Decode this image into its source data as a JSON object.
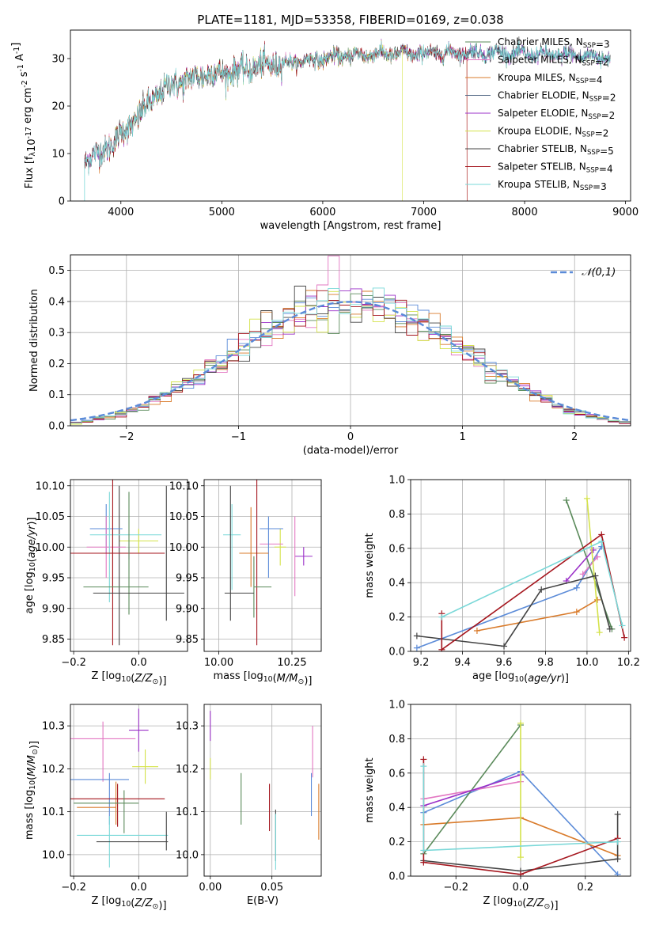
{
  "chart_data": [
    {
      "id": "spectrum",
      "type": "line",
      "title": "PLATE=1181, MJD=53358, FIBERID=0169, z=0.038",
      "xlabel": "wavelength [Angstrom, rest frame]",
      "ylabel": "Flux [f$_\\lambda$10$^{-17}$ erg cm$^{-2}$ s$^{-1}$ A$^{-1}$]",
      "xlim": [
        3500,
        9050
      ],
      "ylim": [
        0,
        36
      ],
      "xticks": [
        4000,
        5000,
        6000,
        7000,
        8000,
        9000
      ],
      "yticks": [
        0,
        10,
        20,
        30
      ],
      "grid": false,
      "legend_position": "right",
      "continuum": {
        "x": [
          3640,
          3700,
          3800,
          3900,
          4000,
          4100,
          4200,
          4300,
          4400,
          4500,
          4600,
          4800,
          5000,
          5200,
          5400,
          5600,
          5800,
          6000,
          6200,
          6500,
          6800,
          7000,
          7200,
          7500,
          7800,
          8000,
          8300,
          8600,
          8850
        ],
        "y": [
          8.5,
          9.5,
          10,
          12,
          14,
          16,
          18.5,
          21,
          23,
          24.5,
          25,
          26.5,
          27,
          27.5,
          28.5,
          29,
          29.5,
          30,
          30.5,
          31,
          31,
          31,
          31.2,
          31.2,
          31.2,
          31,
          30.8,
          30.5,
          30.2
        ]
      },
      "series": [
        {
          "name": "Chabrier MILES, N$_{SSP}$=3",
          "color": "#5a8a5a"
        },
        {
          "name": "Salpeter MILES, N$_{SSP}$=2",
          "color": "#e377c2"
        },
        {
          "name": "Kroupa MILES, N$_{SSP}$=4",
          "color": "#d97b2b"
        },
        {
          "name": "Chabrier ELODIE, N$_{SSP}$=2",
          "color": "#5a6e8a"
        },
        {
          "name": "Salpeter ELODIE, N$_{SSP}$=2",
          "color": "#9b30c8"
        },
        {
          "name": "Kroupa ELODIE, N$_{SSP}$=2",
          "color": "#d4e24a"
        },
        {
          "name": "Chabrier STELIB, N$_{SSP}$=5",
          "color": "#444444"
        },
        {
          "name": "Salpeter STELIB, N$_{SSP}$=4",
          "color": "#a5161e"
        },
        {
          "name": "Kroupa STELIB, N$_{SSP}$=3",
          "color": "#7ad8d8"
        }
      ],
      "series_ranges": [
        [
          3640,
          8850
        ],
        [
          3640,
          8850
        ],
        [
          3640,
          7430
        ],
        [
          3640,
          8850
        ],
        [
          3640,
          8850
        ],
        [
          3900,
          6790
        ],
        [
          3640,
          8850
        ],
        [
          3640,
          7430
        ],
        [
          3640,
          8850
        ]
      ]
    },
    {
      "id": "residuals",
      "type": "line",
      "title": "",
      "xlabel": "(data-model)/error",
      "ylabel": "Normed distribution",
      "xlim": [
        -2.5,
        2.5
      ],
      "ylim": [
        0,
        0.55
      ],
      "xticks": [
        -2,
        -1,
        0,
        1,
        2
      ],
      "yticks": [
        0,
        0.1,
        0.2,
        0.3,
        0.4,
        0.5
      ],
      "grid": true,
      "legend_position": "top-right",
      "gaussian": {
        "name": "$\\mathcal{N}(0,1)$",
        "color": "#5b8bd8"
      },
      "bin_width": 0.1,
      "histogram_colors": [
        "#5b8bd8",
        "#e377c2",
        "#d97b2b",
        "#5a8a5a",
        "#9b30c8",
        "#d4e24a",
        "#444444",
        "#a5161e",
        "#7ad8d8"
      ]
    },
    {
      "id": "age_vs_Z",
      "type": "scatter",
      "xlabel": "Z [log$_{10}$($Z/Z_\\odot$)]",
      "ylabel": "age  [log$_{10}$($age/yr$)]",
      "xlim": [
        -0.21,
        0.15
      ],
      "ylim": [
        9.83,
        10.11
      ],
      "xticks": [
        -0.2,
        0.0
      ],
      "yticks": [
        9.85,
        9.9,
        9.95,
        10.0,
        10.05,
        10.1
      ],
      "grid": true,
      "points": [
        {
          "x": -0.03,
          "y": 9.99,
          "xerr": 0.04,
          "yerr": 0.01,
          "color": "#9b30c8"
        },
        {
          "x": 0.0,
          "y": 10.01,
          "xerr": 0.06,
          "yerr": 0.02,
          "color": "#d4e24a"
        },
        {
          "x": -0.06,
          "y": 9.97,
          "xerr": 0.0,
          "yerr": 0.13,
          "color": "#444444"
        },
        {
          "x": -0.1,
          "y": 10.03,
          "xerr": 0.05,
          "yerr": 0.04,
          "color": "#5b8bd8"
        },
        {
          "x": -0.1,
          "y": 10.0,
          "xerr": 0.06,
          "yerr": 0.05,
          "color": "#e377c2"
        },
        {
          "x": -0.04,
          "y": 10.02,
          "xerr": 0.11,
          "yerr": 0.0,
          "color": "#7ad8d8"
        },
        {
          "x": -0.09,
          "y": 10.0,
          "xerr": 0.0,
          "yerr": 0.09,
          "color": "#7ad8d8"
        },
        {
          "x": -0.08,
          "y": 9.99,
          "xerr": 0.06,
          "yerr": 0.06,
          "color": "#d97b2b"
        },
        {
          "x": -0.08,
          "y": 9.99,
          "xerr": 0.16,
          "yerr": 0.15,
          "color": "#a5161e"
        },
        {
          "x": -0.07,
          "y": 9.935,
          "xerr": 0.1,
          "yerr": 0.0,
          "color": "#5a8a5a"
        },
        {
          "x": -0.03,
          "y": 9.99,
          "xerr": 0.0,
          "yerr": 0.1,
          "color": "#5a8a5a"
        },
        {
          "x": 0.0,
          "y": 9.925,
          "xerr": 0.14,
          "yerr": 0.0,
          "color": "#444444"
        },
        {
          "x": 0.085,
          "y": 9.99,
          "xerr": 0.0,
          "yerr": 0.11,
          "color": "#444444"
        }
      ]
    },
    {
      "id": "age_vs_mass",
      "type": "scatter",
      "xlabel": "mass [log$_{10}$($M/M_\\odot$)]",
      "ylabel": "",
      "xlim": [
        9.95,
        10.35
      ],
      "ylim": [
        9.83,
        10.11
      ],
      "xticks": [
        10.0,
        10.25
      ],
      "yticks": [
        9.85,
        9.9,
        9.95,
        10.0,
        10.05,
        10.1
      ],
      "grid": true,
      "points": [
        {
          "x": 10.29,
          "y": 9.985,
          "xerr": 0.03,
          "yerr": 0.015,
          "color": "#9b30c8"
        },
        {
          "x": 10.21,
          "y": 10.0,
          "xerr": 0.02,
          "yerr": 0.03,
          "color": "#d4e24a"
        },
        {
          "x": 10.26,
          "y": 9.985,
          "xerr": 0.0,
          "yerr": 0.065,
          "color": "#e377c2"
        },
        {
          "x": 10.18,
          "y": 10.005,
          "xerr": 0.04,
          "yerr": 0.0,
          "color": "#e377c2"
        },
        {
          "x": 10.18,
          "y": 10.03,
          "xerr": 0.04,
          "yerr": 0.0,
          "color": "#5b8bd8"
        },
        {
          "x": 10.17,
          "y": 10.0,
          "xerr": 0.0,
          "yerr": 0.05,
          "color": "#5b8bd8"
        },
        {
          "x": 10.045,
          "y": 10.02,
          "xerr": 0.03,
          "yerr": 0.0,
          "color": "#7ad8d8"
        },
        {
          "x": 10.045,
          "y": 10.0,
          "xerr": 0.0,
          "yerr": 0.07,
          "color": "#7ad8d8"
        },
        {
          "x": 10.11,
          "y": 10.0,
          "xerr": 0.0,
          "yerr": 0.065,
          "color": "#d97b2b"
        },
        {
          "x": 10.12,
          "y": 9.99,
          "xerr": 0.05,
          "yerr": 0.0,
          "color": "#d97b2b"
        },
        {
          "x": 10.13,
          "y": 9.99,
          "xerr": 0.0,
          "yerr": 0.15,
          "color": "#a5161e"
        },
        {
          "x": 10.15,
          "y": 9.935,
          "xerr": 0.03,
          "yerr": 0.0,
          "color": "#5a8a5a"
        },
        {
          "x": 10.12,
          "y": 9.935,
          "xerr": 0.0,
          "yerr": 0.05,
          "color": "#5a8a5a"
        },
        {
          "x": 10.07,
          "y": 9.925,
          "xerr": 0.05,
          "yerr": 0.0,
          "color": "#444444"
        },
        {
          "x": 10.04,
          "y": 9.99,
          "xerr": 0.0,
          "yerr": 0.11,
          "color": "#444444"
        }
      ]
    },
    {
      "id": "massweight_vs_age",
      "type": "line",
      "xlabel": "age  [log$_{10}$($age/yr$)]",
      "ylabel": "mass weight",
      "xlim": [
        9.15,
        10.21
      ],
      "ylim": [
        0,
        1
      ],
      "xticks": [
        9.2,
        9.4,
        9.6,
        9.8,
        10.0,
        10.2
      ],
      "yticks": [
        0.0,
        0.2,
        0.4,
        0.6,
        0.8,
        1.0
      ],
      "grid": true,
      "series": [
        {
          "color": "#5b8bd8",
          "x": [
            9.18,
            9.95,
            10.07
          ],
          "y": [
            0.02,
            0.37,
            0.61
          ]
        },
        {
          "color": "#e377c2",
          "x": [
            9.98,
            10.05
          ],
          "y": [
            0.45,
            0.55
          ]
        },
        {
          "color": "#d97b2b",
          "x": [
            9.47,
            9.95,
            10.05
          ],
          "y": [
            0.12,
            0.23,
            0.3
          ]
        },
        {
          "color": "#5a8a5a",
          "x": [
            9.9,
            10.12
          ],
          "y": [
            0.88,
            0.13
          ]
        },
        {
          "color": "#9b30c8",
          "x": [
            9.9,
            10.03
          ],
          "y": [
            0.41,
            0.59
          ]
        },
        {
          "color": "#d4e24a",
          "x": [
            10.0,
            10.06
          ],
          "y": [
            0.89,
            0.11
          ]
        },
        {
          "color": "#444444",
          "x": [
            9.18,
            9.6,
            9.78,
            10.04,
            10.11
          ],
          "y": [
            0.09,
            0.03,
            0.36,
            0.44,
            0.13
          ]
        },
        {
          "color": "#a5161e",
          "x": [
            9.3,
            9.3,
            10.07,
            10.18
          ],
          "y": [
            0.22,
            0.01,
            0.68,
            0.08
          ]
        },
        {
          "color": "#7ad8d8",
          "x": [
            9.3,
            10.07,
            10.17
          ],
          "y": [
            0.2,
            0.64,
            0.15
          ]
        }
      ]
    },
    {
      "id": "mass_vs_Z",
      "type": "scatter",
      "xlabel": "Z [log$_{10}$($Z/Z_\\odot$)]",
      "ylabel": "mass [log$_{10}$($M/M_\\odot$)]",
      "xlim": [
        -0.21,
        0.15
      ],
      "ylim": [
        9.95,
        10.35
      ],
      "xticks": [
        -0.2,
        0.0
      ],
      "yticks": [
        10.0,
        10.1,
        10.2,
        10.3
      ],
      "grid": true,
      "points": [
        {
          "x": 0.0,
          "y": 10.29,
          "xerr": 0.03,
          "yerr": 0.05,
          "color": "#9b30c8"
        },
        {
          "x": -0.11,
          "y": 10.27,
          "xerr": 0.1,
          "yerr": 0.0,
          "color": "#e377c2"
        },
        {
          "x": -0.11,
          "y": 10.24,
          "xerr": 0.0,
          "yerr": 0.07,
          "color": "#e377c2"
        },
        {
          "x": 0.02,
          "y": 10.205,
          "xerr": 0.04,
          "yerr": 0.04,
          "color": "#d4e24a"
        },
        {
          "x": -0.12,
          "y": 10.175,
          "xerr": 0.09,
          "yerr": 0.0,
          "color": "#5b8bd8"
        },
        {
          "x": -0.09,
          "y": 10.13,
          "xerr": 0.0,
          "yerr": 0.06,
          "color": "#5b8bd8"
        },
        {
          "x": -0.07,
          "y": 10.12,
          "xerr": 0.0,
          "yerr": 0.05,
          "color": "#d97b2b"
        },
        {
          "x": -0.13,
          "y": 10.11,
          "xerr": 0.06,
          "yerr": 0.0,
          "color": "#d97b2b"
        },
        {
          "x": -0.08,
          "y": 10.13,
          "xerr": 0.16,
          "yerr": 0.0,
          "color": "#a5161e"
        },
        {
          "x": -0.065,
          "y": 10.115,
          "xerr": 0.0,
          "yerr": 0.05,
          "color": "#a5161e"
        },
        {
          "x": -0.1,
          "y": 10.12,
          "xerr": 0.1,
          "yerr": 0.0,
          "color": "#5a8a5a"
        },
        {
          "x": -0.045,
          "y": 10.1,
          "xerr": 0.0,
          "yerr": 0.05,
          "color": "#5a8a5a"
        },
        {
          "x": -0.05,
          "y": 10.045,
          "xerr": 0.14,
          "yerr": 0.0,
          "color": "#7ad8d8"
        },
        {
          "x": -0.09,
          "y": 10.03,
          "xerr": 0.0,
          "yerr": 0.06,
          "color": "#7ad8d8"
        },
        {
          "x": -0.02,
          "y": 10.03,
          "xerr": 0.11,
          "yerr": 0.0,
          "color": "#444444"
        },
        {
          "x": 0.085,
          "y": 10.055,
          "xerr": 0.0,
          "yerr": 0.045,
          "color": "#444444"
        }
      ]
    },
    {
      "id": "mass_vs_ebv",
      "type": "scatter",
      "xlabel": "E(B-V)",
      "ylabel": "",
      "xlim": [
        -0.005,
        0.09
      ],
      "ylim": [
        9.95,
        10.35
      ],
      "xticks": [
        0.0,
        0.05
      ],
      "yticks": [
        10.0,
        10.1,
        10.2,
        10.3
      ],
      "grid": true,
      "points": [
        {
          "x": 0.0,
          "y": 10.3,
          "xerr": 0.0,
          "yerr": 0.035,
          "color": "#9b30c8"
        },
        {
          "x": 0.0,
          "y": 10.2,
          "xerr": 0.0,
          "yerr": 0.025,
          "color": "#d4e24a"
        },
        {
          "x": 0.025,
          "y": 10.13,
          "xerr": 0.0,
          "yerr": 0.06,
          "color": "#5a8a5a"
        },
        {
          "x": 0.048,
          "y": 10.11,
          "xerr": 0.0,
          "yerr": 0.055,
          "color": "#a5161e"
        },
        {
          "x": 0.053,
          "y": 10.045,
          "xerr": 0.0,
          "yerr": 0.06,
          "color": "#444444"
        },
        {
          "x": 0.053,
          "y": 10.03,
          "xerr": 0.0,
          "yerr": 0.065,
          "color": "#7ad8d8"
        },
        {
          "x": 0.082,
          "y": 10.14,
          "xerr": 0.0,
          "yerr": 0.05,
          "color": "#5b8bd8"
        },
        {
          "x": 0.083,
          "y": 10.24,
          "xerr": 0.0,
          "yerr": 0.06,
          "color": "#e377c2"
        },
        {
          "x": 0.088,
          "y": 10.1,
          "xerr": 0.0,
          "yerr": 0.065,
          "color": "#d97b2b"
        }
      ]
    },
    {
      "id": "massweight_vs_Z",
      "type": "line",
      "xlabel": "Z [log$_{10}$($Z/Z_\\odot$)]",
      "ylabel": "mass weight",
      "xlim": [
        -0.34,
        0.34
      ],
      "ylim": [
        0,
        1
      ],
      "xticks": [
        -0.2,
        0.0,
        0.2
      ],
      "yticks": [
        0.0,
        0.2,
        0.4,
        0.6,
        0.8,
        1.0
      ],
      "grid": true,
      "series": [
        {
          "color": "#5b8bd8",
          "x": [
            -0.3,
            0.0,
            0.3
          ],
          "y": [
            0.37,
            0.61,
            0.01
          ]
        },
        {
          "color": "#e377c2",
          "x": [
            -0.3,
            0.0
          ],
          "y": [
            0.45,
            0.55
          ]
        },
        {
          "color": "#d97b2b",
          "x": [
            -0.3,
            0.0,
            0.3
          ],
          "y": [
            0.3,
            0.34,
            0.12
          ]
        },
        {
          "color": "#5a8a5a",
          "x": [
            -0.3,
            0.0
          ],
          "y": [
            0.13,
            0.88
          ]
        },
        {
          "color": "#9b30c8",
          "x": [
            -0.3,
            0.0
          ],
          "y": [
            0.41,
            0.59
          ]
        },
        {
          "color": "#d4e24a",
          "x": [
            0.0,
            0.0
          ],
          "y": [
            0.89,
            0.11
          ]
        },
        {
          "color": "#444444",
          "x": [
            -0.3,
            0.0,
            0.3,
            0.3
          ],
          "y": [
            0.09,
            0.03,
            0.1,
            0.36
          ]
        },
        {
          "color": "#a5161e",
          "x": [
            -0.3,
            -0.3,
            0.0,
            0.3
          ],
          "y": [
            0.68,
            0.08,
            0.01,
            0.22
          ]
        },
        {
          "color": "#7ad8d8",
          "x": [
            -0.3,
            -0.3,
            0.3
          ],
          "y": [
            0.64,
            0.15,
            0.2
          ]
        }
      ]
    }
  ]
}
